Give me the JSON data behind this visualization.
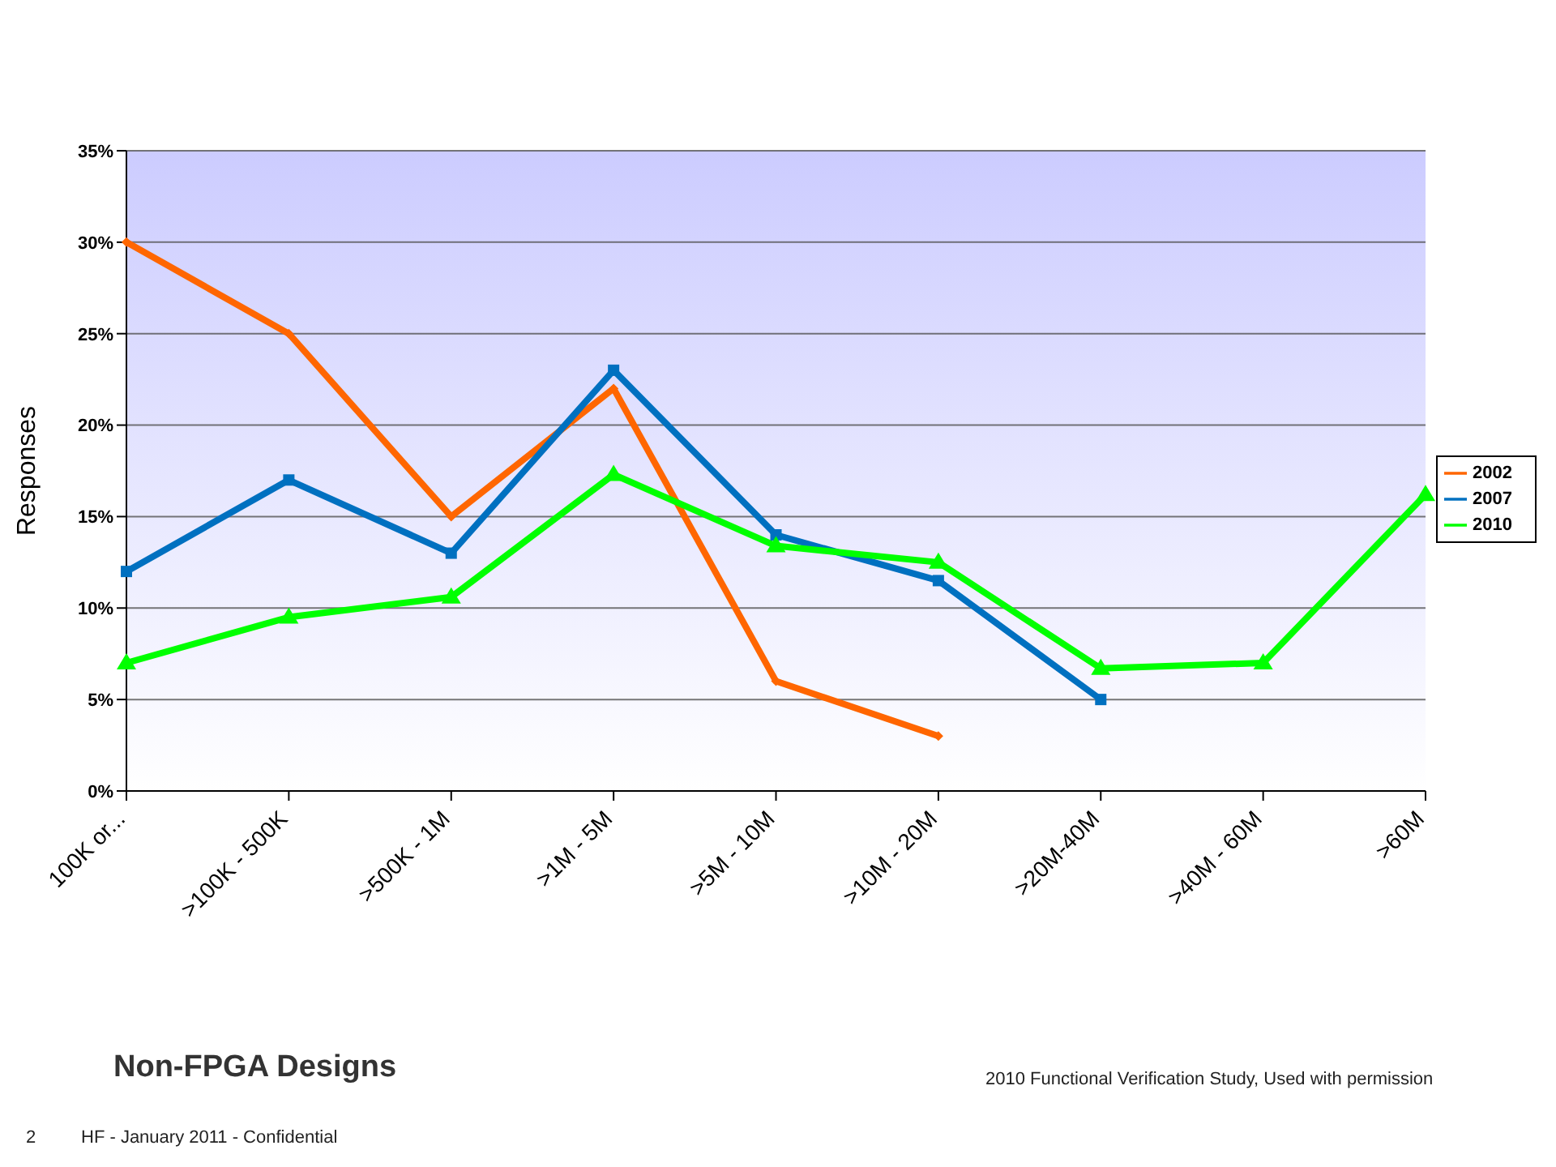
{
  "chart_data": {
    "type": "line",
    "title": "Non-FPGA Designs",
    "ylabel": "Responses",
    "categories": [
      "100K or...",
      ">100K - 500K",
      ">500K - 1M",
      ">1M - 5M",
      ">5M - 10M",
      ">10M - 20M",
      ">20M-40M",
      ">40M - 60M",
      ">60M"
    ],
    "series": [
      {
        "name": "2002",
        "color": "#ff6600",
        "marker": "diamond",
        "values": [
          30,
          25,
          15,
          22,
          6,
          3,
          null,
          null,
          null
        ]
      },
      {
        "name": "2007",
        "color": "#0070c0",
        "marker": "square",
        "values": [
          12,
          17,
          13,
          23,
          14,
          11.5,
          5,
          null,
          null
        ]
      },
      {
        "name": "2010",
        "color": "#00ff00",
        "marker": "triangle",
        "values": [
          7,
          9.5,
          10.6,
          17.3,
          13.4,
          12.5,
          6.7,
          7,
          16.2
        ]
      }
    ],
    "ylim": [
      0,
      35
    ],
    "yticks": [
      {
        "value": 0,
        "label": "0%"
      },
      {
        "value": 5,
        "label": "5%"
      },
      {
        "value": 10,
        "label": "10%"
      },
      {
        "value": 15,
        "label": "15%"
      },
      {
        "value": 20,
        "label": "20%"
      },
      {
        "value": 25,
        "label": "25%"
      },
      {
        "value": 30,
        "label": "30%"
      },
      {
        "value": 35,
        "label": "35%"
      }
    ],
    "grid": "y",
    "legend": "right",
    "line_style": "solid",
    "annotations": [
      "2010 Functional Verification Study,  Used with permission",
      "2",
      "HF - January 2011 - Confidential"
    ]
  }
}
